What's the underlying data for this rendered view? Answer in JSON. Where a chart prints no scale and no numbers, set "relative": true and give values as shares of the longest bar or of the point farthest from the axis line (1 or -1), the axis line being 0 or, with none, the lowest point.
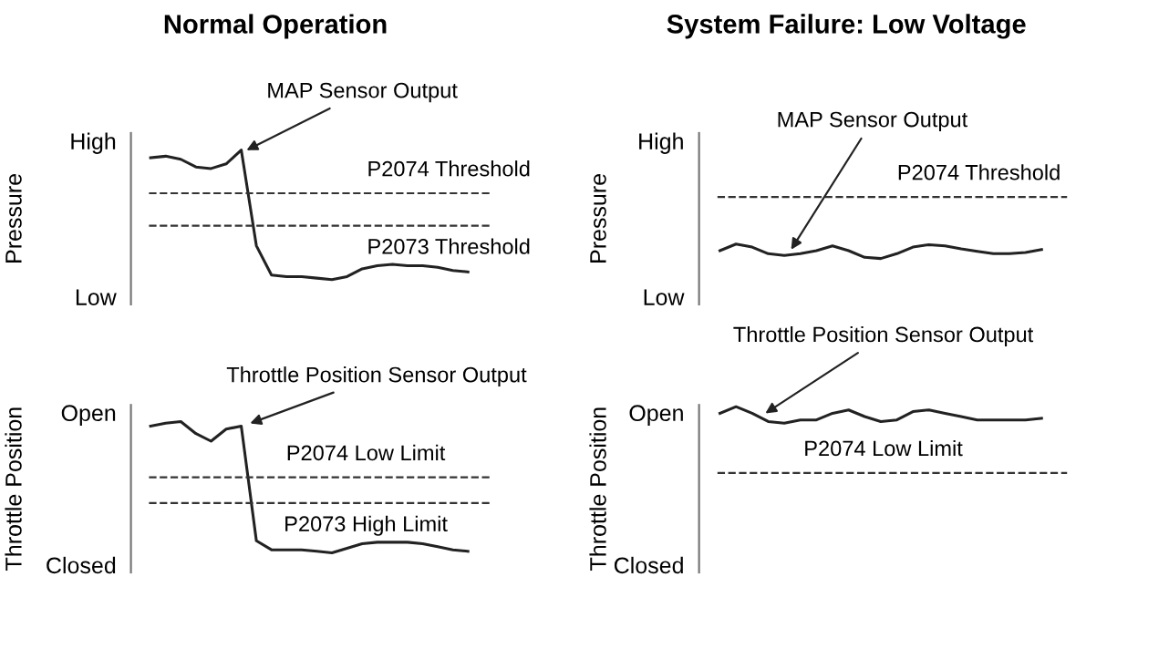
{
  "chart_data": [
    {
      "type": "line",
      "title": "Normal Operation",
      "ylabel": "Pressure",
      "relative": true,
      "categories": [
        null,
        null,
        null,
        null,
        null,
        null,
        null,
        null,
        null,
        null,
        null,
        null,
        null,
        null,
        null,
        null,
        null,
        null,
        null,
        null,
        null,
        null
      ],
      "series": [
        {
          "color": "#222222",
          "values": [
            0.95,
            0.96,
            0.94,
            0.89,
            0.88,
            0.91,
            1,
            0.38,
            0.19,
            0.18,
            0.18,
            0.17,
            0.16,
            0.18,
            0.23,
            0.25,
            0.26,
            0.25,
            0.25,
            0.24,
            0.22,
            0.21
          ]
        }
      ],
      "grid": false,
      "legend": false,
      "line_style": "solid",
      "marker": "none",
      "ref_lines": [
        {
          "axis": "y",
          "value": 0.72,
          "label": "P2074 Threshold",
          "line_style": "dashed",
          "color": "#333333"
        },
        {
          "axis": "y",
          "value": 0.51,
          "label": "P2073 Threshold",
          "line_style": "dashed",
          "color": "#333333"
        }
      ],
      "annotations": [
        "MAP Sensor Output",
        "High",
        "Low"
      ]
    },
    {
      "type": "line",
      "title": "System Failure: Low Voltage",
      "ylabel": "Pressure",
      "relative": true,
      "categories": [
        null,
        null,
        null,
        null,
        null,
        null,
        null,
        null,
        null,
        null,
        null,
        null,
        null,
        null,
        null,
        null,
        null,
        null,
        null,
        null,
        null
      ],
      "series": [
        {
          "color": "#222222",
          "values": [
            0.89,
            1,
            0.95,
            0.84,
            0.81,
            0.84,
            0.89,
            0.97,
            0.89,
            0.78,
            0.76,
            0.84,
            0.95,
            0.99,
            0.97,
            0.92,
            0.88,
            0.84,
            0.84,
            0.86,
            0.91
          ]
        }
      ],
      "grid": false,
      "legend": false,
      "line_style": "solid",
      "marker": "none",
      "ref_lines": [
        {
          "axis": "y",
          "value": 1.78,
          "label": "P2074 Threshold",
          "line_style": "dashed",
          "color": "#333333"
        }
      ],
      "annotations": [
        "MAP Sensor Output",
        "High",
        "Low"
      ]
    },
    {
      "type": "line",
      "ylabel": "Throttle Position",
      "relative": true,
      "categories": [
        null,
        null,
        null,
        null,
        null,
        null,
        null,
        null,
        null,
        null,
        null,
        null,
        null,
        null,
        null,
        null,
        null,
        null,
        null,
        null,
        null,
        null
      ],
      "series": [
        {
          "color": "#222222",
          "values": [
            0.97,
            0.99,
            1,
            0.92,
            0.87,
            0.95,
            0.97,
            0.21,
            0.15,
            0.15,
            0.15,
            0.14,
            0.13,
            0.16,
            0.19,
            0.2,
            0.2,
            0.2,
            0.19,
            0.17,
            0.15,
            0.14
          ]
        }
      ],
      "grid": false,
      "legend": false,
      "line_style": "solid",
      "marker": "none",
      "ref_lines": [
        {
          "axis": "y",
          "value": 0.63,
          "label": "P2074 Low Limit",
          "line_style": "dashed",
          "color": "#333333"
        },
        {
          "axis": "y",
          "value": 0.46,
          "label": "P2073 High Limit",
          "line_style": "dashed",
          "color": "#333333"
        }
      ],
      "annotations": [
        "Throttle Position Sensor Output",
        "Open",
        "Closed"
      ]
    },
    {
      "type": "line",
      "ylabel": "Throttle Position",
      "relative": true,
      "categories": [
        null,
        null,
        null,
        null,
        null,
        null,
        null,
        null,
        null,
        null,
        null,
        null,
        null,
        null,
        null,
        null,
        null,
        null,
        null,
        null,
        null
      ],
      "series": [
        {
          "color": "#222222",
          "values": [
            0.96,
            1,
            0.96,
            0.91,
            0.9,
            0.92,
            0.92,
            0.96,
            0.98,
            0.94,
            0.91,
            0.92,
            0.97,
            0.98,
            0.96,
            0.94,
            0.92,
            0.92,
            0.92,
            0.92,
            0.93
          ]
        }
      ],
      "grid": false,
      "legend": false,
      "line_style": "solid",
      "marker": "none",
      "ref_lines": [
        {
          "axis": "y",
          "value": 0.6,
          "label": "P2074 Low Limit",
          "line_style": "dashed",
          "color": "#333333"
        }
      ],
      "annotations": [
        "Throttle Position Sensor Output",
        "Open",
        "Closed"
      ]
    }
  ]
}
